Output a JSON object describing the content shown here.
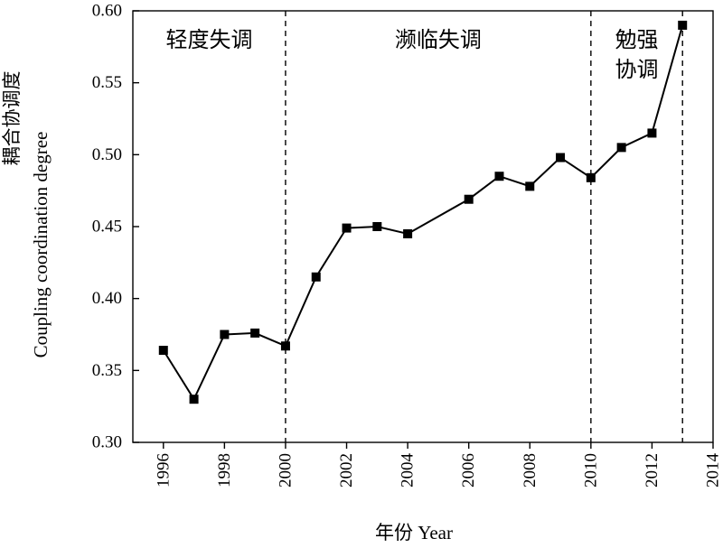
{
  "chart_data": {
    "type": "line",
    "xlabel": "年份 Year",
    "ylabel_cn": "耦合协调度",
    "ylabel_en": "Coupling coordination degree",
    "xlim": [
      1995,
      2014
    ],
    "ylim": [
      0.3,
      0.6
    ],
    "x_ticks": [
      1996,
      1998,
      2000,
      2002,
      2004,
      2006,
      2008,
      2010,
      2012,
      2014
    ],
    "y_ticks": [
      "0.30",
      "0.35",
      "0.40",
      "0.45",
      "0.50",
      "0.55",
      "0.60"
    ],
    "series": [
      {
        "marker": "square",
        "color": "#000000",
        "x": [
          1996,
          1997,
          1998,
          1999,
          2000,
          2001,
          2002,
          2003,
          2004,
          2006,
          2007,
          2008,
          2009,
          2010,
          2011,
          2012,
          2013
        ],
        "y": [
          0.364,
          0.33,
          0.375,
          0.376,
          0.367,
          0.415,
          0.449,
          0.45,
          0.445,
          0.469,
          0.485,
          0.478,
          0.498,
          0.484,
          0.505,
          0.515,
          0.59
        ]
      }
    ],
    "dividers": [
      2000,
      2010,
      2013
    ],
    "regions": [
      {
        "lines": [
          "轻度失调"
        ],
        "x_center": 1997.5
      },
      {
        "lines": [
          "濒临失调"
        ],
        "x_center": 2005.0
      },
      {
        "lines": [
          "勉强",
          "协调"
        ],
        "x_center": 2011.5
      }
    ],
    "grid": false,
    "legend": "none"
  }
}
